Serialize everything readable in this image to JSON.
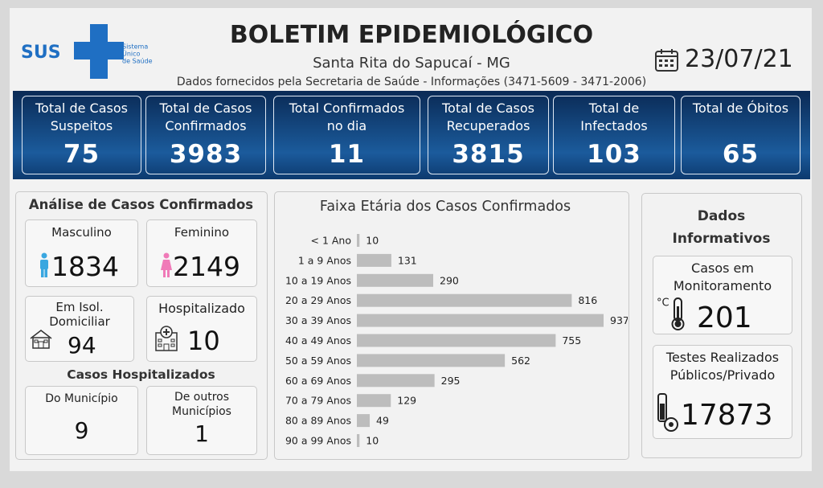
{
  "header": {
    "logo": "SUS",
    "logo_caption": [
      "Sistema",
      "Único",
      "de Saúde"
    ],
    "title": "BOLETIM EPIDEMIOLÓGICO",
    "city": "Santa Rita do Sapucaí - MG",
    "source": "Dados fornecidos pela Secretaria de Saúde - Informações (3471-5609 - 3471-2006)",
    "date": "23/07/21"
  },
  "cards": [
    {
      "label": "Total de Casos Suspeitos",
      "value": 75
    },
    {
      "label": "Total de Casos Confirmados",
      "value": 3983
    },
    {
      "label": "Total Confirmados no dia",
      "value": 11
    },
    {
      "label": "Total de Casos Recuperados",
      "value": 3815
    },
    {
      "label": "Total de Infectados",
      "value": 103
    },
    {
      "label": "Total de Óbitos",
      "value": 65
    }
  ],
  "analysis": {
    "title": "Análise de Casos Confirmados",
    "boxes": [
      {
        "label": "Masculino",
        "value": 1834
      },
      {
        "label": "Feminino",
        "value": 2149
      },
      {
        "label": "Em Isol. Domiciliar",
        "value": 94
      },
      {
        "label": "Hospitalizado",
        "value": 10
      }
    ],
    "hospital_title": "Casos Hospitalizados",
    "hospital": [
      {
        "label": "Do Município",
        "value": 9
      },
      {
        "label": "De outros Municípios",
        "value": 1
      }
    ]
  },
  "info": {
    "title": "Dados Informativos",
    "boxes": [
      {
        "label": "Casos em Monitoramento",
        "value": 201
      },
      {
        "label": "Testes Realizados Públicos/Privado",
        "value": 17873
      }
    ]
  },
  "chart_data": {
    "type": "bar",
    "orientation": "horizontal",
    "title": "Faixa Etária dos Casos Confirmados",
    "categories": [
      "< 1 Ano",
      "1 a 9 Anos",
      "10 a 19 Anos",
      "20 a 29 Anos",
      "30 a 39 Anos",
      "40 a 49 Anos",
      "50 a 59 Anos",
      "60 a 69 Anos",
      "70 a 79 Anos",
      "80 a 89 Anos",
      "90 a 99 Anos"
    ],
    "values": [
      10,
      131,
      290,
      816,
      937,
      755,
      562,
      295,
      129,
      49,
      10
    ],
    "color": "#bdbdbd"
  }
}
